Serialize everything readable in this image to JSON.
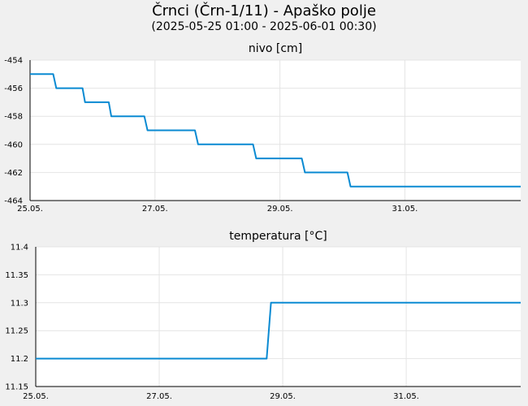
{
  "header": {
    "title": "Črnci (Črn-1/11) - Apaško polje",
    "subtitle": "(2025-05-25 01:00 - 2025-06-01 00:30)"
  },
  "colors": {
    "series": "#0a8ad2",
    "grid": "#e4e4e4",
    "panel_bg": "#ffffff",
    "page_bg": "#f0f0f0"
  },
  "chart_data": [
    {
      "type": "line",
      "title": "nivo [cm]",
      "xlabel": "",
      "ylabel": "",
      "xlim": [
        0,
        7.854
      ],
      "xticks": [
        0,
        2,
        4,
        6
      ],
      "xtick_labels": [
        "25.05.",
        "27.05.",
        "29.05.",
        "31.05."
      ],
      "ylim": [
        -464,
        -454
      ],
      "yticks": [
        -454,
        -456,
        -458,
        -460,
        -462,
        -464
      ],
      "ytick_labels": [
        "-454",
        "-456",
        "-458",
        "-460",
        "-462",
        "-464"
      ],
      "grid": true,
      "series": [
        {
          "name": "",
          "x": [
            0,
            0.37,
            0.42,
            0.84,
            0.88,
            1.26,
            1.3,
            1.83,
            1.88,
            2.64,
            2.69,
            3.57,
            3.62,
            4.35,
            4.4,
            5.08,
            5.13,
            7.854
          ],
          "y": [
            -455,
            -455,
            -456,
            -456,
            -457,
            -457,
            -458,
            -458,
            -459,
            -459,
            -460,
            -460,
            -461,
            -461,
            -462,
            -462,
            -463,
            -463
          ]
        }
      ]
    },
    {
      "type": "line",
      "title": "temperatura [°C]",
      "xlabel": "",
      "ylabel": "",
      "xlim": [
        0,
        7.854
      ],
      "xticks": [
        0,
        2,
        4,
        6
      ],
      "xtick_labels": [
        "25.05.",
        "27.05.",
        "29.05.",
        "31.05."
      ],
      "ylim": [
        11.15,
        11.4
      ],
      "yticks": [
        11.4,
        11.35,
        11.3,
        11.25,
        11.2,
        11.15
      ],
      "ytick_labels": [
        "11.4",
        "11.35",
        "11.3",
        "11.25",
        "11.2",
        "11.15"
      ],
      "grid": true,
      "series": [
        {
          "name": "",
          "x": [
            0,
            3.74,
            3.81,
            7.854
          ],
          "y": [
            11.2,
            11.2,
            11.3,
            11.3
          ]
        }
      ]
    }
  ]
}
